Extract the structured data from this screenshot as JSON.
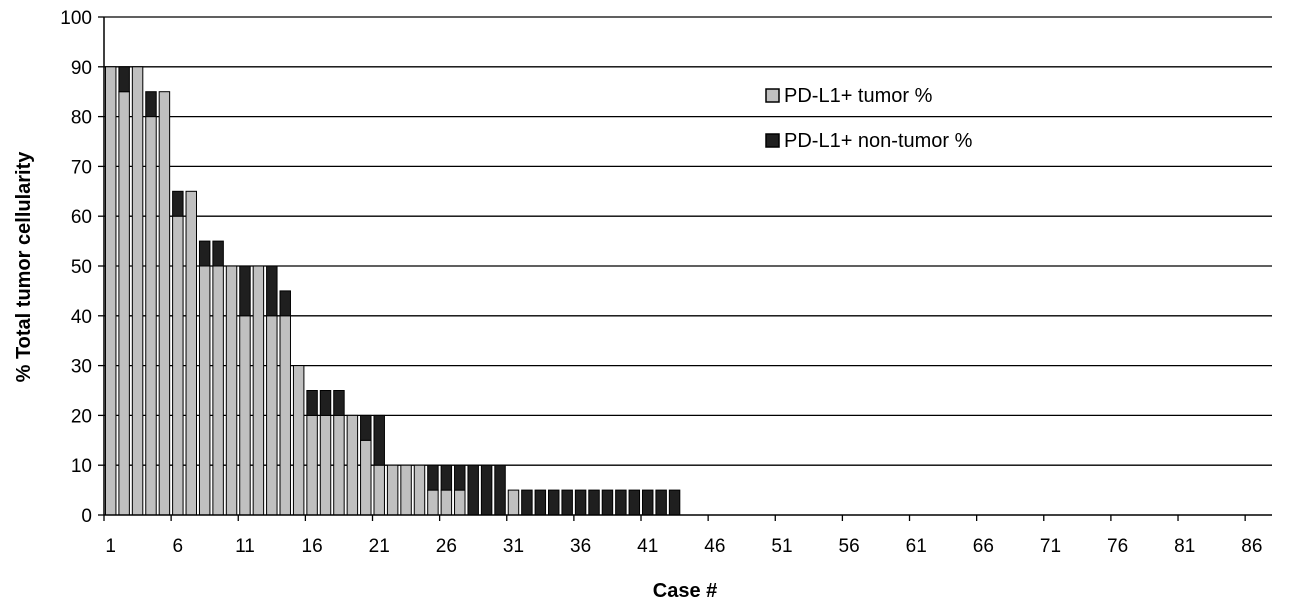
{
  "chart_data": {
    "type": "bar",
    "stacked": true,
    "title": "",
    "xlabel": "Case #",
    "ylabel": "% Total tumor cellularity",
    "ylim": [
      0,
      100
    ],
    "yticks": [
      0,
      10,
      20,
      30,
      40,
      50,
      60,
      70,
      80,
      90,
      100
    ],
    "xticks": [
      1,
      6,
      11,
      16,
      21,
      26,
      31,
      36,
      41,
      46,
      51,
      56,
      61,
      66,
      71,
      76,
      81,
      86
    ],
    "xlim": [
      1,
      87
    ],
    "grid": "horizontal",
    "legend_position": "top-right",
    "x": [
      1,
      2,
      3,
      4,
      5,
      6,
      7,
      8,
      9,
      10,
      11,
      12,
      13,
      14,
      15,
      16,
      17,
      18,
      19,
      20,
      21,
      22,
      23,
      24,
      25,
      26,
      27,
      28,
      29,
      30,
      31,
      32,
      33,
      34,
      35,
      36,
      37,
      38,
      39,
      40,
      41,
      42,
      43,
      44,
      45,
      46,
      47,
      48,
      49,
      50,
      51,
      52,
      53,
      54,
      55,
      56,
      57,
      58,
      59,
      60,
      61,
      62,
      63,
      64,
      65,
      66,
      67,
      68,
      69,
      70,
      71,
      72,
      73,
      74,
      75,
      76,
      77,
      78,
      79,
      80,
      81,
      82,
      83,
      84,
      85,
      86,
      87
    ],
    "series": [
      {
        "name": "PD-L1+ tumor %",
        "color": "#c0c0c0",
        "values": [
          90,
          85,
          90,
          80,
          85,
          60,
          65,
          50,
          50,
          50,
          40,
          50,
          40,
          40,
          30,
          20,
          20,
          20,
          20,
          15,
          10,
          10,
          10,
          10,
          5,
          5,
          5,
          0,
          0,
          0,
          5,
          0,
          0,
          0,
          0,
          0,
          0,
          0,
          0,
          0,
          0,
          0,
          0,
          0,
          0,
          0,
          0,
          0,
          0,
          0,
          0,
          0,
          0,
          0,
          0,
          0,
          0,
          0,
          0,
          0,
          0,
          0,
          0,
          0,
          0,
          0,
          0,
          0,
          0,
          0,
          0,
          0,
          0,
          0,
          0,
          0,
          0,
          0,
          0,
          0,
          0,
          0,
          0,
          0,
          0,
          0,
          0
        ]
      },
      {
        "name": "PD-L1+ non-tumor %",
        "color": "#1f1f1f",
        "values": [
          0,
          5,
          0,
          5,
          0,
          5,
          0,
          5,
          5,
          0,
          10,
          0,
          10,
          5,
          0,
          5,
          5,
          5,
          0,
          5,
          10,
          0,
          0,
          0,
          5,
          5,
          5,
          10,
          10,
          10,
          0,
          5,
          5,
          5,
          5,
          5,
          5,
          5,
          5,
          5,
          5,
          5,
          5,
          0,
          0,
          0,
          0,
          0,
          0,
          0,
          0,
          0,
          0,
          0,
          0,
          0,
          0,
          0,
          0,
          0,
          0,
          0,
          0,
          0,
          0,
          0,
          0,
          0,
          0,
          0,
          0,
          0,
          0,
          0,
          0,
          0,
          0,
          0,
          0,
          0,
          0,
          0,
          0,
          0,
          0,
          0,
          0
        ]
      }
    ]
  }
}
